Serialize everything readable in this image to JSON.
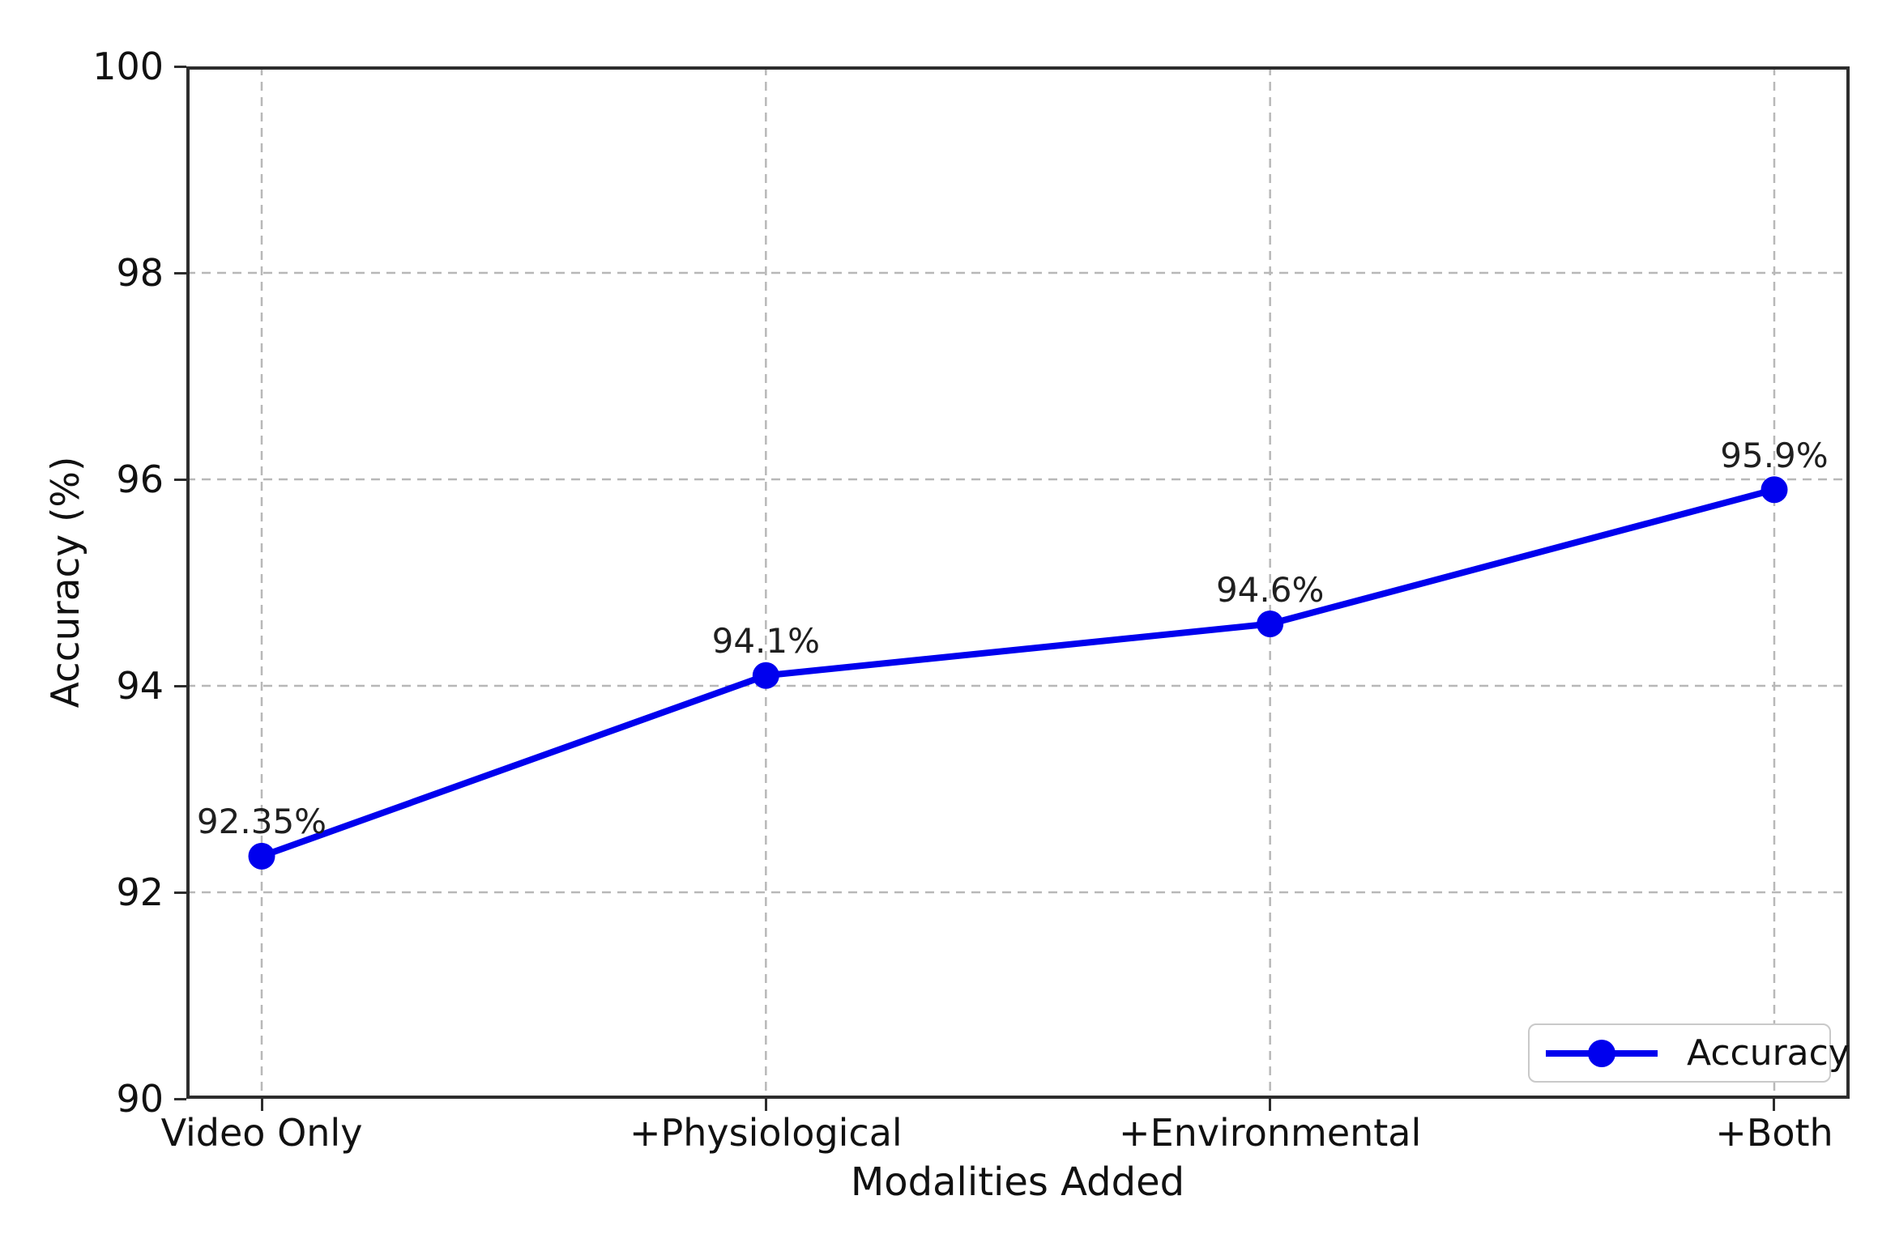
{
  "chart_data": {
    "type": "line",
    "title": "",
    "xlabel": "Modalities Added",
    "ylabel": "Accuracy (%)",
    "categories": [
      "Video Only",
      "+Physiological",
      "+Environmental",
      "+Both"
    ],
    "series": [
      {
        "name": "Accuracy",
        "values": [
          92.35,
          94.1,
          94.6,
          95.9
        ]
      }
    ],
    "point_labels": [
      "92.35%",
      "94.1%",
      "94.6%",
      "95.9%"
    ],
    "ylim": [
      90,
      100
    ],
    "yticks": [
      90,
      92,
      94,
      96,
      98,
      100
    ],
    "grid": true,
    "grid_style": "dashed",
    "legend": {
      "position": "lower-right",
      "entries": [
        "Accuracy"
      ]
    },
    "colors": {
      "line": "#0000EE",
      "marker": "#0000EE",
      "grid": "#b8b8b8",
      "axis": "#2d2d2d",
      "text": "#111111",
      "legend_border": "#c9c9c9",
      "background": "#ffffff"
    }
  }
}
